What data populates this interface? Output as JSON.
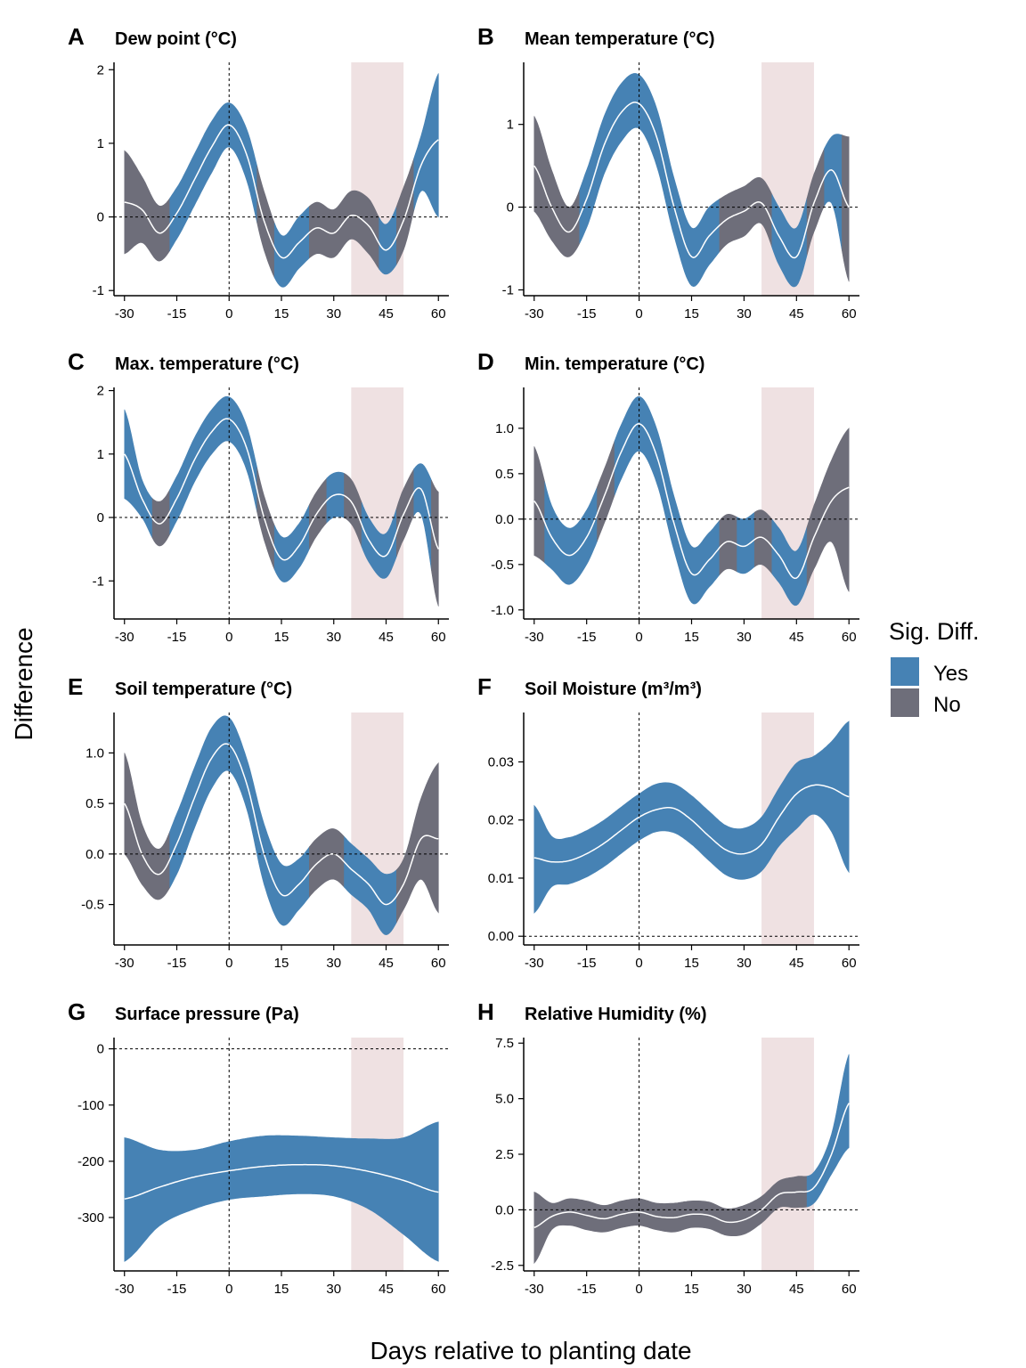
{
  "figure": {
    "y_axis_title": "Difference",
    "x_axis_title": "Days relative to planting date"
  },
  "legend": {
    "title": "Sig. Diff.",
    "items": [
      {
        "label": "Yes",
        "color": "#4682B4"
      },
      {
        "label": "No",
        "color": "#6E6E7A"
      }
    ]
  },
  "colors": {
    "significant": "#4682B4",
    "not_significant": "#6E6E7A",
    "window_shade": "#EFE1E2",
    "mean_line": "#FFFFFF"
  },
  "chart_data": [
    {
      "panel": "A",
      "title": "Dew point (°C)",
      "type": "area",
      "xlim": [
        -33,
        63
      ],
      "ylim": [
        -1.07,
        2.1
      ],
      "xticks": [
        -30,
        -15,
        0,
        15,
        30,
        45,
        60
      ],
      "yticks": [
        -1,
        0,
        1,
        2
      ],
      "ytick_labels": [
        "-1",
        "0",
        "1",
        "2"
      ],
      "shaded_window": [
        35,
        50
      ],
      "hline": 0,
      "vline": 0,
      "x": [
        -30,
        -25,
        -20,
        -15,
        -10,
        -5,
        0,
        5,
        10,
        15,
        20,
        25,
        30,
        35,
        40,
        45,
        50,
        55,
        60
      ],
      "mean": [
        0.2,
        0.1,
        -0.22,
        0.05,
        0.5,
        0.95,
        1.25,
        0.85,
        -0.05,
        -0.55,
        -0.35,
        -0.15,
        -0.22,
        0.02,
        -0.12,
        -0.45,
        -0.05,
        0.7,
        1.05
      ],
      "lower": [
        -0.5,
        -0.35,
        -0.6,
        -0.3,
        0.15,
        0.6,
        0.95,
        0.5,
        -0.45,
        -0.95,
        -0.7,
        -0.5,
        -0.55,
        -0.3,
        -0.5,
        -0.78,
        -0.45,
        0.35,
        0.0
      ],
      "upper": [
        0.9,
        0.55,
        0.15,
        0.4,
        0.85,
        1.3,
        1.55,
        1.2,
        0.35,
        -0.25,
        0.0,
        0.2,
        0.1,
        0.35,
        0.25,
        -0.1,
        0.4,
        1.1,
        1.95
      ],
      "significant": [
        false,
        false,
        false,
        true,
        true,
        true,
        true,
        true,
        false,
        true,
        true,
        false,
        false,
        false,
        false,
        true,
        false,
        true,
        true
      ]
    },
    {
      "panel": "B",
      "title": "Mean temperature (°C)",
      "type": "area",
      "xlim": [
        -33,
        63
      ],
      "ylim": [
        -1.07,
        1.75
      ],
      "xticks": [
        -30,
        -15,
        0,
        15,
        30,
        45,
        60
      ],
      "yticks": [
        -1,
        0,
        1
      ],
      "ytick_labels": [
        "-1",
        "0",
        "1"
      ],
      "shaded_window": [
        35,
        50
      ],
      "hline": 0,
      "vline": 0,
      "x": [
        -30,
        -25,
        -20,
        -15,
        -10,
        -5,
        0,
        5,
        10,
        15,
        20,
        25,
        30,
        35,
        40,
        45,
        50,
        55,
        60
      ],
      "mean": [
        0.5,
        0.0,
        -0.3,
        0.1,
        0.75,
        1.15,
        1.25,
        0.85,
        0.0,
        -0.6,
        -0.35,
        -0.15,
        -0.05,
        0.05,
        -0.35,
        -0.6,
        0.05,
        0.45,
        0.0
      ],
      "lower": [
        -0.05,
        -0.4,
        -0.6,
        -0.25,
        0.4,
        0.8,
        0.95,
        0.5,
        -0.35,
        -0.95,
        -0.7,
        -0.45,
        -0.35,
        -0.2,
        -0.7,
        -0.95,
        -0.3,
        0.05,
        -0.9
      ],
      "upper": [
        1.1,
        0.45,
        0.0,
        0.45,
        1.1,
        1.5,
        1.6,
        1.2,
        0.35,
        -0.25,
        0.0,
        0.15,
        0.25,
        0.35,
        0.0,
        -0.25,
        0.4,
        0.85,
        0.85
      ],
      "significant": [
        false,
        false,
        false,
        true,
        true,
        true,
        true,
        true,
        true,
        true,
        true,
        false,
        false,
        false,
        true,
        true,
        false,
        true,
        false
      ]
    },
    {
      "panel": "C",
      "title": "Max. temperature (°C)",
      "type": "area",
      "xlim": [
        -33,
        63
      ],
      "ylim": [
        -1.6,
        2.05
      ],
      "xticks": [
        -30,
        -15,
        0,
        15,
        30,
        45,
        60
      ],
      "yticks": [
        -1,
        0,
        1,
        2
      ],
      "ytick_labels": [
        "-1",
        "0",
        "1",
        "2"
      ],
      "shaded_window": [
        35,
        50
      ],
      "hline": 0,
      "vline": 0,
      "x": [
        -30,
        -25,
        -20,
        -15,
        -10,
        -5,
        0,
        5,
        10,
        15,
        20,
        25,
        30,
        35,
        40,
        45,
        50,
        55,
        60
      ],
      "mean": [
        1.0,
        0.3,
        -0.1,
        0.3,
        0.9,
        1.35,
        1.55,
        1.1,
        0.0,
        -0.65,
        -0.45,
        0.05,
        0.35,
        0.25,
        -0.35,
        -0.6,
        0.05,
        0.45,
        -0.5
      ],
      "lower": [
        0.3,
        0.0,
        -0.45,
        -0.05,
        0.55,
        1.0,
        1.2,
        0.75,
        -0.35,
        -1.0,
        -0.8,
        -0.3,
        0.0,
        -0.1,
        -0.7,
        -0.95,
        -0.35,
        0.05,
        -1.4
      ],
      "upper": [
        1.7,
        0.6,
        0.25,
        0.65,
        1.25,
        1.7,
        1.9,
        1.45,
        0.35,
        -0.3,
        -0.1,
        0.4,
        0.7,
        0.6,
        0.0,
        -0.25,
        0.45,
        0.85,
        0.4
      ],
      "significant": [
        true,
        true,
        false,
        true,
        true,
        true,
        true,
        true,
        false,
        true,
        true,
        false,
        true,
        false,
        true,
        true,
        false,
        true,
        false
      ]
    },
    {
      "panel": "D",
      "title": "Min. temperature (°C)",
      "type": "area",
      "xlim": [
        -33,
        63
      ],
      "ylim": [
        -1.1,
        1.45
      ],
      "xticks": [
        -30,
        -15,
        0,
        15,
        30,
        45,
        60
      ],
      "yticks": [
        -1.0,
        -0.5,
        0.0,
        0.5,
        1.0
      ],
      "ytick_labels": [
        "-1.0",
        "-0.5",
        "0.0",
        "0.5",
        "1.0"
      ],
      "shaded_window": [
        35,
        50
      ],
      "hline": 0,
      "vline": 0,
      "x": [
        -30,
        -25,
        -20,
        -15,
        -10,
        -5,
        0,
        5,
        10,
        15,
        20,
        25,
        30,
        35,
        40,
        45,
        50,
        55,
        60
      ],
      "mean": [
        0.2,
        -0.2,
        -0.4,
        -0.2,
        0.25,
        0.75,
        1.05,
        0.7,
        -0.05,
        -0.6,
        -0.45,
        -0.25,
        -0.3,
        -0.2,
        -0.4,
        -0.65,
        -0.2,
        0.2,
        0.35
      ],
      "lower": [
        -0.4,
        -0.55,
        -0.72,
        -0.5,
        -0.05,
        0.45,
        0.75,
        0.4,
        -0.35,
        -0.92,
        -0.75,
        -0.55,
        -0.6,
        -0.5,
        -0.7,
        -0.95,
        -0.55,
        -0.25,
        -0.8
      ],
      "upper": [
        0.8,
        0.15,
        -0.1,
        0.1,
        0.55,
        1.05,
        1.35,
        1.0,
        0.25,
        -0.3,
        -0.15,
        0.05,
        0.0,
        0.1,
        -0.1,
        -0.35,
        0.15,
        0.65,
        1.0
      ],
      "significant": [
        false,
        true,
        true,
        true,
        false,
        true,
        true,
        true,
        true,
        true,
        true,
        false,
        true,
        false,
        true,
        true,
        false,
        false,
        false
      ]
    },
    {
      "panel": "E",
      "title": "Soil temperature (°C)",
      "type": "area",
      "xlim": [
        -33,
        63
      ],
      "ylim": [
        -0.9,
        1.4
      ],
      "xticks": [
        -30,
        -15,
        0,
        15,
        30,
        45,
        60
      ],
      "yticks": [
        -0.5,
        0.0,
        0.5,
        1.0
      ],
      "ytick_labels": [
        "-0.5",
        "0.0",
        "0.5",
        "1.0"
      ],
      "shaded_window": [
        35,
        50
      ],
      "hline": 0,
      "vline": 0,
      "x": [
        -30,
        -25,
        -20,
        -15,
        -10,
        -5,
        0,
        5,
        10,
        15,
        20,
        25,
        30,
        35,
        40,
        45,
        50,
        55,
        60
      ],
      "mean": [
        0.5,
        0.0,
        -0.2,
        0.1,
        0.55,
        0.95,
        1.08,
        0.7,
        0.0,
        -0.4,
        -0.3,
        -0.1,
        0.0,
        -0.15,
        -0.3,
        -0.5,
        -0.3,
        0.15,
        0.15
      ],
      "lower": [
        0.0,
        -0.3,
        -0.45,
        -0.2,
        0.25,
        0.65,
        0.82,
        0.45,
        -0.3,
        -0.7,
        -0.55,
        -0.35,
        -0.25,
        -0.4,
        -0.55,
        -0.8,
        -0.55,
        -0.25,
        -0.58
      ],
      "upper": [
        1.0,
        0.3,
        0.05,
        0.4,
        0.85,
        1.25,
        1.35,
        0.95,
        0.3,
        -0.1,
        -0.05,
        0.15,
        0.25,
        0.1,
        -0.05,
        -0.2,
        -0.05,
        0.55,
        0.9
      ],
      "significant": [
        false,
        false,
        false,
        true,
        true,
        true,
        true,
        true,
        true,
        true,
        true,
        false,
        false,
        true,
        true,
        true,
        false,
        false,
        false
      ]
    },
    {
      "panel": "F",
      "title": "Soil Moisture (m³/m³)",
      "type": "area",
      "xlim": [
        -33,
        63
      ],
      "ylim": [
        -0.0015,
        0.0385
      ],
      "xticks": [
        -30,
        -15,
        0,
        15,
        30,
        45,
        60
      ],
      "yticks": [
        0.0,
        0.01,
        0.02,
        0.03
      ],
      "ytick_labels": [
        "0.00",
        "0.01",
        "0.02",
        "0.03"
      ],
      "shaded_window": [
        35,
        50
      ],
      "hline": 0,
      "vline": 0,
      "x": [
        -30,
        -25,
        -20,
        -15,
        -10,
        -5,
        0,
        5,
        10,
        15,
        20,
        25,
        30,
        35,
        40,
        45,
        50,
        55,
        60
      ],
      "mean": [
        0.0135,
        0.0128,
        0.013,
        0.0142,
        0.016,
        0.0183,
        0.0205,
        0.0218,
        0.022,
        0.02,
        0.0172,
        0.0148,
        0.0142,
        0.0158,
        0.0205,
        0.0245,
        0.026,
        0.0255,
        0.024
      ],
      "lower": [
        0.004,
        0.0085,
        0.009,
        0.0102,
        0.012,
        0.0143,
        0.0165,
        0.018,
        0.0178,
        0.0158,
        0.013,
        0.0105,
        0.0098,
        0.0112,
        0.0155,
        0.0185,
        0.021,
        0.018,
        0.011
      ],
      "upper": [
        0.0225,
        0.0172,
        0.017,
        0.0182,
        0.02,
        0.0223,
        0.0245,
        0.0262,
        0.0262,
        0.0242,
        0.0215,
        0.019,
        0.0186,
        0.0205,
        0.0255,
        0.0298,
        0.031,
        0.0335,
        0.037
      ],
      "significant": [
        true,
        true,
        true,
        true,
        true,
        true,
        true,
        true,
        true,
        true,
        true,
        true,
        true,
        true,
        true,
        true,
        true,
        true,
        true
      ]
    },
    {
      "panel": "G",
      "title": "Surface pressure (Pa)",
      "type": "area",
      "xlim": [
        -33,
        63
      ],
      "ylim": [
        -395,
        20
      ],
      "xticks": [
        -30,
        -15,
        0,
        15,
        30,
        45,
        60
      ],
      "yticks": [
        -300,
        -200,
        -100,
        0
      ],
      "ytick_labels": [
        "-300",
        "-200",
        "-100",
        "0"
      ],
      "shaded_window": [
        35,
        50
      ],
      "hline": 0,
      "vline": 0,
      "x": [
        -30,
        -20,
        -10,
        0,
        10,
        20,
        30,
        40,
        50,
        60
      ],
      "mean": [
        -267,
        -246,
        -228,
        -217,
        -209,
        -206,
        -208,
        -218,
        -234,
        -255
      ],
      "lower": [
        -378,
        -315,
        -285,
        -268,
        -262,
        -258,
        -262,
        -285,
        -330,
        -378
      ],
      "upper": [
        -158,
        -180,
        -180,
        -165,
        -155,
        -155,
        -158,
        -160,
        -158,
        -130
      ],
      "significant": [
        true,
        true,
        true,
        true,
        true,
        true,
        true,
        true,
        true,
        true
      ]
    },
    {
      "panel": "H",
      "title": "Relative Humidity (%)",
      "type": "area",
      "xlim": [
        -33,
        63
      ],
      "ylim": [
        -2.75,
        7.75
      ],
      "xticks": [
        -30,
        -15,
        0,
        15,
        30,
        45,
        60
      ],
      "yticks": [
        -2.5,
        0.0,
        2.5,
        5.0,
        7.5
      ],
      "ytick_labels": [
        "-2.5",
        "0.0",
        "2.5",
        "5.0",
        "7.5"
      ],
      "shaded_window": [
        35,
        50
      ],
      "hline": 0,
      "vline": 0,
      "x": [
        -30,
        -25,
        -20,
        -15,
        -10,
        -5,
        0,
        5,
        10,
        15,
        20,
        25,
        30,
        35,
        40,
        45,
        50,
        55,
        60
      ],
      "mean": [
        -0.8,
        -0.3,
        -0.1,
        -0.25,
        -0.4,
        -0.2,
        -0.1,
        -0.3,
        -0.35,
        -0.2,
        -0.25,
        -0.55,
        -0.45,
        0.0,
        0.7,
        0.8,
        1.0,
        2.5,
        4.8
      ],
      "lower": [
        -2.4,
        -0.9,
        -0.7,
        -0.9,
        -1.0,
        -0.8,
        -0.7,
        -0.9,
        -1.0,
        -0.8,
        -0.85,
        -1.15,
        -1.1,
        -0.6,
        0.1,
        0.1,
        0.3,
        1.6,
        2.8
      ],
      "upper": [
        0.8,
        0.3,
        0.5,
        0.4,
        0.2,
        0.4,
        0.5,
        0.3,
        0.3,
        0.4,
        0.35,
        0.05,
        0.2,
        0.6,
        1.3,
        1.5,
        1.7,
        3.4,
        7.0
      ],
      "significant": [
        false,
        false,
        false,
        false,
        false,
        false,
        false,
        false,
        false,
        false,
        false,
        false,
        false,
        false,
        false,
        false,
        true,
        true,
        true
      ]
    }
  ]
}
